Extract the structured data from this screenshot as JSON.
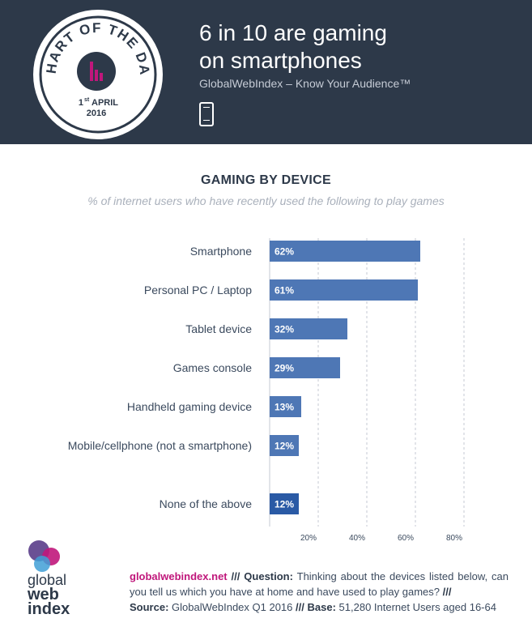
{
  "header": {
    "title_line1": "6 in 10 are gaming",
    "title_line2": "on smartphones",
    "tagline": "GlobalWebIndex – Know Your Audience™",
    "device_icon": "smartphone-icon",
    "badge": {
      "text": "CHART OF THE DAY",
      "day": "1",
      "day_suffix": "st",
      "month": "APRIL",
      "year": "2016",
      "icon": "bar-chart-icon"
    },
    "colors": {
      "background": "#2d3949",
      "accent": "#c0177b"
    }
  },
  "chart_data": {
    "type": "bar",
    "orientation": "horizontal",
    "title": "GAMING BY DEVICE",
    "subtitle": "% of internet users who have recently used the following to play games",
    "categories": [
      "Smartphone",
      "Personal PC / Laptop",
      "Tablet device",
      "Games console",
      "Handheld gaming device",
      "Mobile/cellphone (not a smartphone)",
      "None of the above"
    ],
    "values": [
      62,
      61,
      32,
      29,
      13,
      12,
      12
    ],
    "value_labels": [
      "62%",
      "61%",
      "32%",
      "29%",
      "13%",
      "12%",
      "12%"
    ],
    "xlim": [
      0,
      80
    ],
    "xticks": [
      20,
      40,
      60,
      80
    ],
    "xtick_labels": [
      "20%",
      "40%",
      "60%",
      "80%"
    ],
    "grid": true,
    "colors": {
      "bar": "#4e77b5",
      "highlight_bar": "#2a5aa5"
    }
  },
  "footer": {
    "logo": {
      "line1": "global",
      "line2": "web",
      "line3": "index"
    },
    "site": "globalwebindex.net",
    "sep1": "///",
    "question_label": "Question:",
    "question_text": "Thinking about the devices listed below, can you tell us which you have at home and have used to play games?",
    "sep2": "///",
    "source_label": "Source:",
    "source_text": "GlobalWebIndex Q1 2016",
    "sep3": "///",
    "base_label": "Base:",
    "base_text": "51,280 Internet Users aged 16-64"
  }
}
